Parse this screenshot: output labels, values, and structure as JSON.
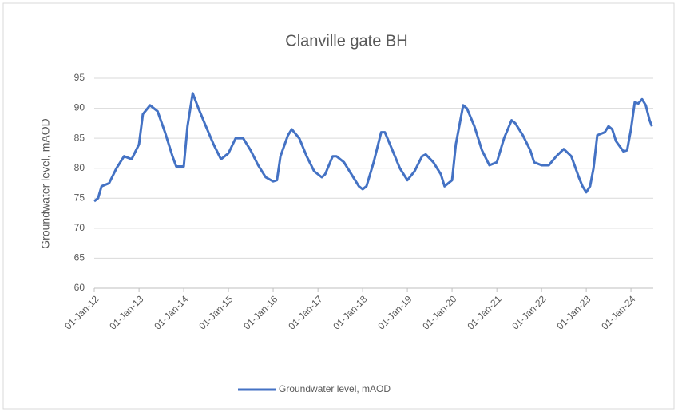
{
  "chart_data": {
    "type": "line",
    "title": "Clanville gate BH",
    "y_label": "Groundwater level, mAOD",
    "x": [
      "2012-01-01",
      "2012-02-01",
      "2012-03-01",
      "2012-05-01",
      "2012-07-01",
      "2012-09-01",
      "2012-11-01",
      "2013-01-01",
      "2013-02-01",
      "2013-04-01",
      "2013-06-01",
      "2013-08-01",
      "2013-10-01",
      "2013-11-01",
      "2014-01-01",
      "2014-02-01",
      "2014-03-15",
      "2014-05-01",
      "2014-07-01",
      "2014-09-01",
      "2014-11-01",
      "2015-01-01",
      "2015-03-01",
      "2015-05-01",
      "2015-07-01",
      "2015-09-01",
      "2015-11-01",
      "2016-01-01",
      "2016-02-01",
      "2016-03-01",
      "2016-05-01",
      "2016-06-01",
      "2016-08-01",
      "2016-10-01",
      "2016-12-01",
      "2017-02-01",
      "2017-03-01",
      "2017-05-01",
      "2017-06-01",
      "2017-08-01",
      "2017-10-01",
      "2017-12-01",
      "2018-01-01",
      "2018-02-01",
      "2018-04-01",
      "2018-06-01",
      "2018-07-01",
      "2018-09-01",
      "2018-11-01",
      "2019-01-01",
      "2019-03-01",
      "2019-05-01",
      "2019-06-01",
      "2019-08-01",
      "2019-10-01",
      "2019-11-01",
      "2020-01-01",
      "2020-02-01",
      "2020-04-01",
      "2020-05-01",
      "2020-07-01",
      "2020-09-01",
      "2020-11-01",
      "2021-01-01",
      "2021-03-01",
      "2021-05-01",
      "2021-06-01",
      "2021-08-01",
      "2021-10-01",
      "2021-11-01",
      "2022-01-01",
      "2022-03-01",
      "2022-05-01",
      "2022-07-01",
      "2022-09-01",
      "2022-11-01",
      "2022-12-01",
      "2023-01-01",
      "2023-02-01",
      "2023-03-01",
      "2023-04-01",
      "2023-06-01",
      "2023-07-01",
      "2023-08-01",
      "2023-09-01",
      "2023-11-01",
      "2023-12-01",
      "2024-01-01",
      "2024-02-01",
      "2024-03-01",
      "2024-04-01",
      "2024-05-01",
      "2024-06-01",
      "2024-06-20"
    ],
    "series": [
      {
        "name": "Groundwater level, mAOD",
        "color": "#4472c4",
        "values": [
          74.5,
          75,
          77,
          77.5,
          80,
          82,
          81.5,
          84,
          89,
          90.5,
          89.5,
          86,
          82,
          80.3,
          80.3,
          87,
          92.5,
          90,
          87,
          84,
          81.5,
          82.5,
          85,
          85,
          83,
          80.5,
          78.5,
          77.8,
          78,
          82,
          85.5,
          86.5,
          85,
          82,
          79.5,
          78.5,
          79,
          82,
          82,
          81,
          79,
          77,
          76.5,
          77,
          81,
          86,
          86,
          83,
          80,
          78,
          79.5,
          82,
          82.3,
          81,
          79,
          77,
          78,
          84,
          90.5,
          90,
          87,
          83,
          80.5,
          81,
          85,
          88,
          87.5,
          85.5,
          83,
          81,
          80.5,
          80.5,
          82,
          83.2,
          82,
          78.5,
          77,
          76,
          77,
          80,
          85.5,
          86,
          87,
          86.5,
          84.5,
          82.8,
          83,
          86.5,
          91,
          90.8,
          91.5,
          90.5,
          88,
          87
        ]
      }
    ],
    "xlim": [
      "2012-01-01",
      "2024-07-01"
    ],
    "xticks": [
      {
        "value": "2012-01-01",
        "label": "01-Jan-12"
      },
      {
        "value": "2013-01-01",
        "label": "01-Jan-13"
      },
      {
        "value": "2014-01-01",
        "label": "01-Jan-14"
      },
      {
        "value": "2015-01-01",
        "label": "01-Jan-15"
      },
      {
        "value": "2016-01-01",
        "label": "01-Jan-16"
      },
      {
        "value": "2017-01-01",
        "label": "01-Jan-17"
      },
      {
        "value": "2018-01-01",
        "label": "01-Jan-18"
      },
      {
        "value": "2019-01-01",
        "label": "01-Jan-19"
      },
      {
        "value": "2020-01-01",
        "label": "01-Jan-20"
      },
      {
        "value": "2021-01-01",
        "label": "01-Jan-21"
      },
      {
        "value": "2022-01-01",
        "label": "01-Jan-22"
      },
      {
        "value": "2023-01-01",
        "label": "01-Jan-23"
      },
      {
        "value": "2024-01-01",
        "label": "01-Jan-24"
      }
    ],
    "ylim": [
      60,
      95
    ],
    "yticks": [
      60,
      65,
      70,
      75,
      80,
      85,
      90,
      95
    ],
    "grid": true,
    "legend": "bottom"
  }
}
